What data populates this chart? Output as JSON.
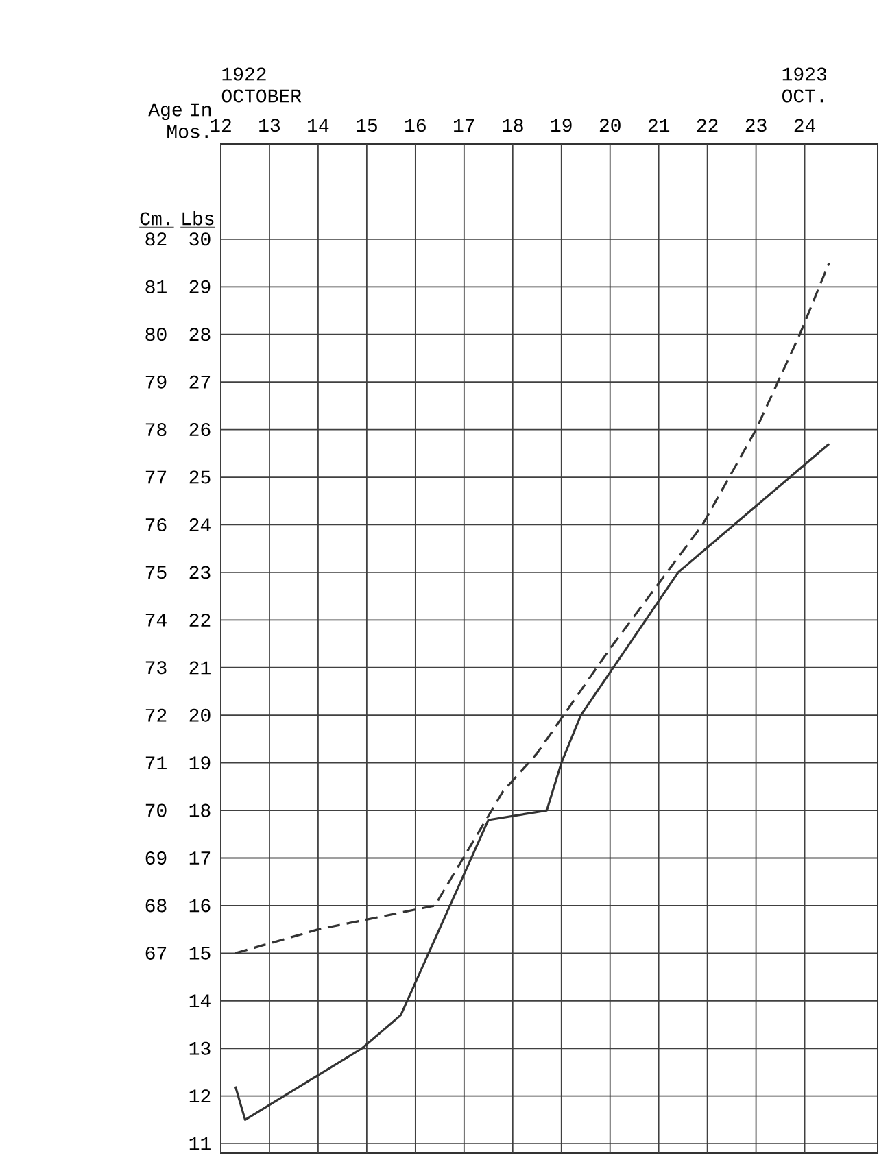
{
  "chart_data": {
    "type": "line",
    "xlabel": "Age In Mos.",
    "ylabel": "Lbs",
    "y2label": "Cm.",
    "xlim": [
      12,
      25.5
    ],
    "xticks": [
      12,
      13,
      14,
      15,
      16,
      17,
      18,
      19,
      20,
      21,
      22,
      23,
      24
    ],
    "ylim": [
      10.8,
      32
    ],
    "yticks": [
      11,
      12,
      13,
      14,
      15,
      16,
      17,
      18,
      19,
      20,
      21,
      22,
      23,
      24,
      25,
      26,
      27,
      28,
      29,
      30
    ],
    "y2lim": [
      62.8,
      84
    ],
    "y2ticks": [
      67,
      68,
      69,
      70,
      71,
      72,
      73,
      74,
      75,
      76,
      77,
      78,
      79,
      80,
      81,
      82
    ],
    "grid": true,
    "series": [
      {
        "color": "#333333",
        "line_style": "solid",
        "x": [
          12.3,
          12.5,
          14.9,
          15.7,
          17.5,
          18.7,
          19.0,
          19.4,
          21.4,
          24.5
        ],
        "values": [
          12.2,
          11.5,
          13.0,
          13.7,
          17.8,
          18.0,
          19.0,
          20.0,
          23.0,
          25.7
        ]
      },
      {
        "color": "#333333",
        "line_style": "dashed",
        "axis": "y2",
        "x": [
          12.3,
          14.0,
          16.4,
          17.8,
          18.5,
          20.0,
          21.9,
          23.0,
          23.9,
          24.5
        ],
        "values": [
          67.0,
          67.5,
          68.0,
          70.4,
          71.2,
          73.4,
          76.0,
          78.0,
          80.0,
          81.5
        ]
      }
    ],
    "annotations": [
      "1922 OCTOBER",
      "1923 OCT."
    ]
  }
}
